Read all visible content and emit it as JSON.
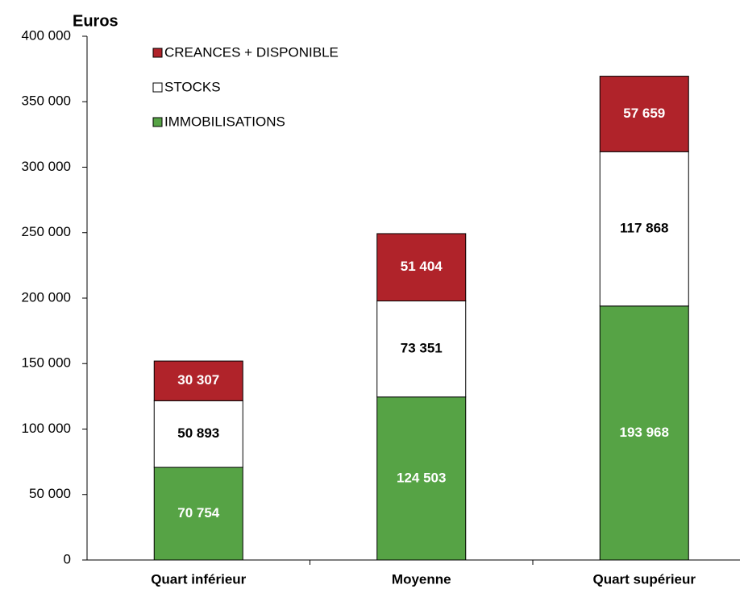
{
  "chart_data": {
    "type": "bar",
    "stacked": true,
    "ylabel": "Euros",
    "categories": [
      "Quart inférieur",
      "Moyenne",
      "Quart supérieur"
    ],
    "series": [
      {
        "name": "IMMOBILISATIONS",
        "color": "#56a345",
        "values": [
          70754,
          124503,
          193968
        ],
        "value_labels": [
          "70 754",
          "124 503",
          "193 968"
        ]
      },
      {
        "name": "STOCKS",
        "color": "#ffffff",
        "values": [
          50893,
          73351,
          117868
        ],
        "value_labels": [
          "50 893",
          "73 351",
          "117 868"
        ]
      },
      {
        "name": "CREANCES + DISPONIBLE",
        "color": "#b0232a",
        "values": [
          30307,
          51404,
          57659
        ],
        "value_labels": [
          "30 307",
          "51 404",
          "57 659"
        ]
      }
    ],
    "ylim": [
      0,
      400000
    ],
    "yticks": [
      {
        "value": 0,
        "label": "0"
      },
      {
        "value": 50000,
        "label": "50 000"
      },
      {
        "value": 100000,
        "label": "100 000"
      },
      {
        "value": 150000,
        "label": "150 000"
      },
      {
        "value": 200000,
        "label": "200 000"
      },
      {
        "value": 250000,
        "label": "250 000"
      },
      {
        "value": 300000,
        "label": "300 000"
      },
      {
        "value": 350000,
        "label": "350 000"
      },
      {
        "value": 400000,
        "label": "400 000"
      }
    ],
    "grid": false,
    "legend": "upper left"
  }
}
